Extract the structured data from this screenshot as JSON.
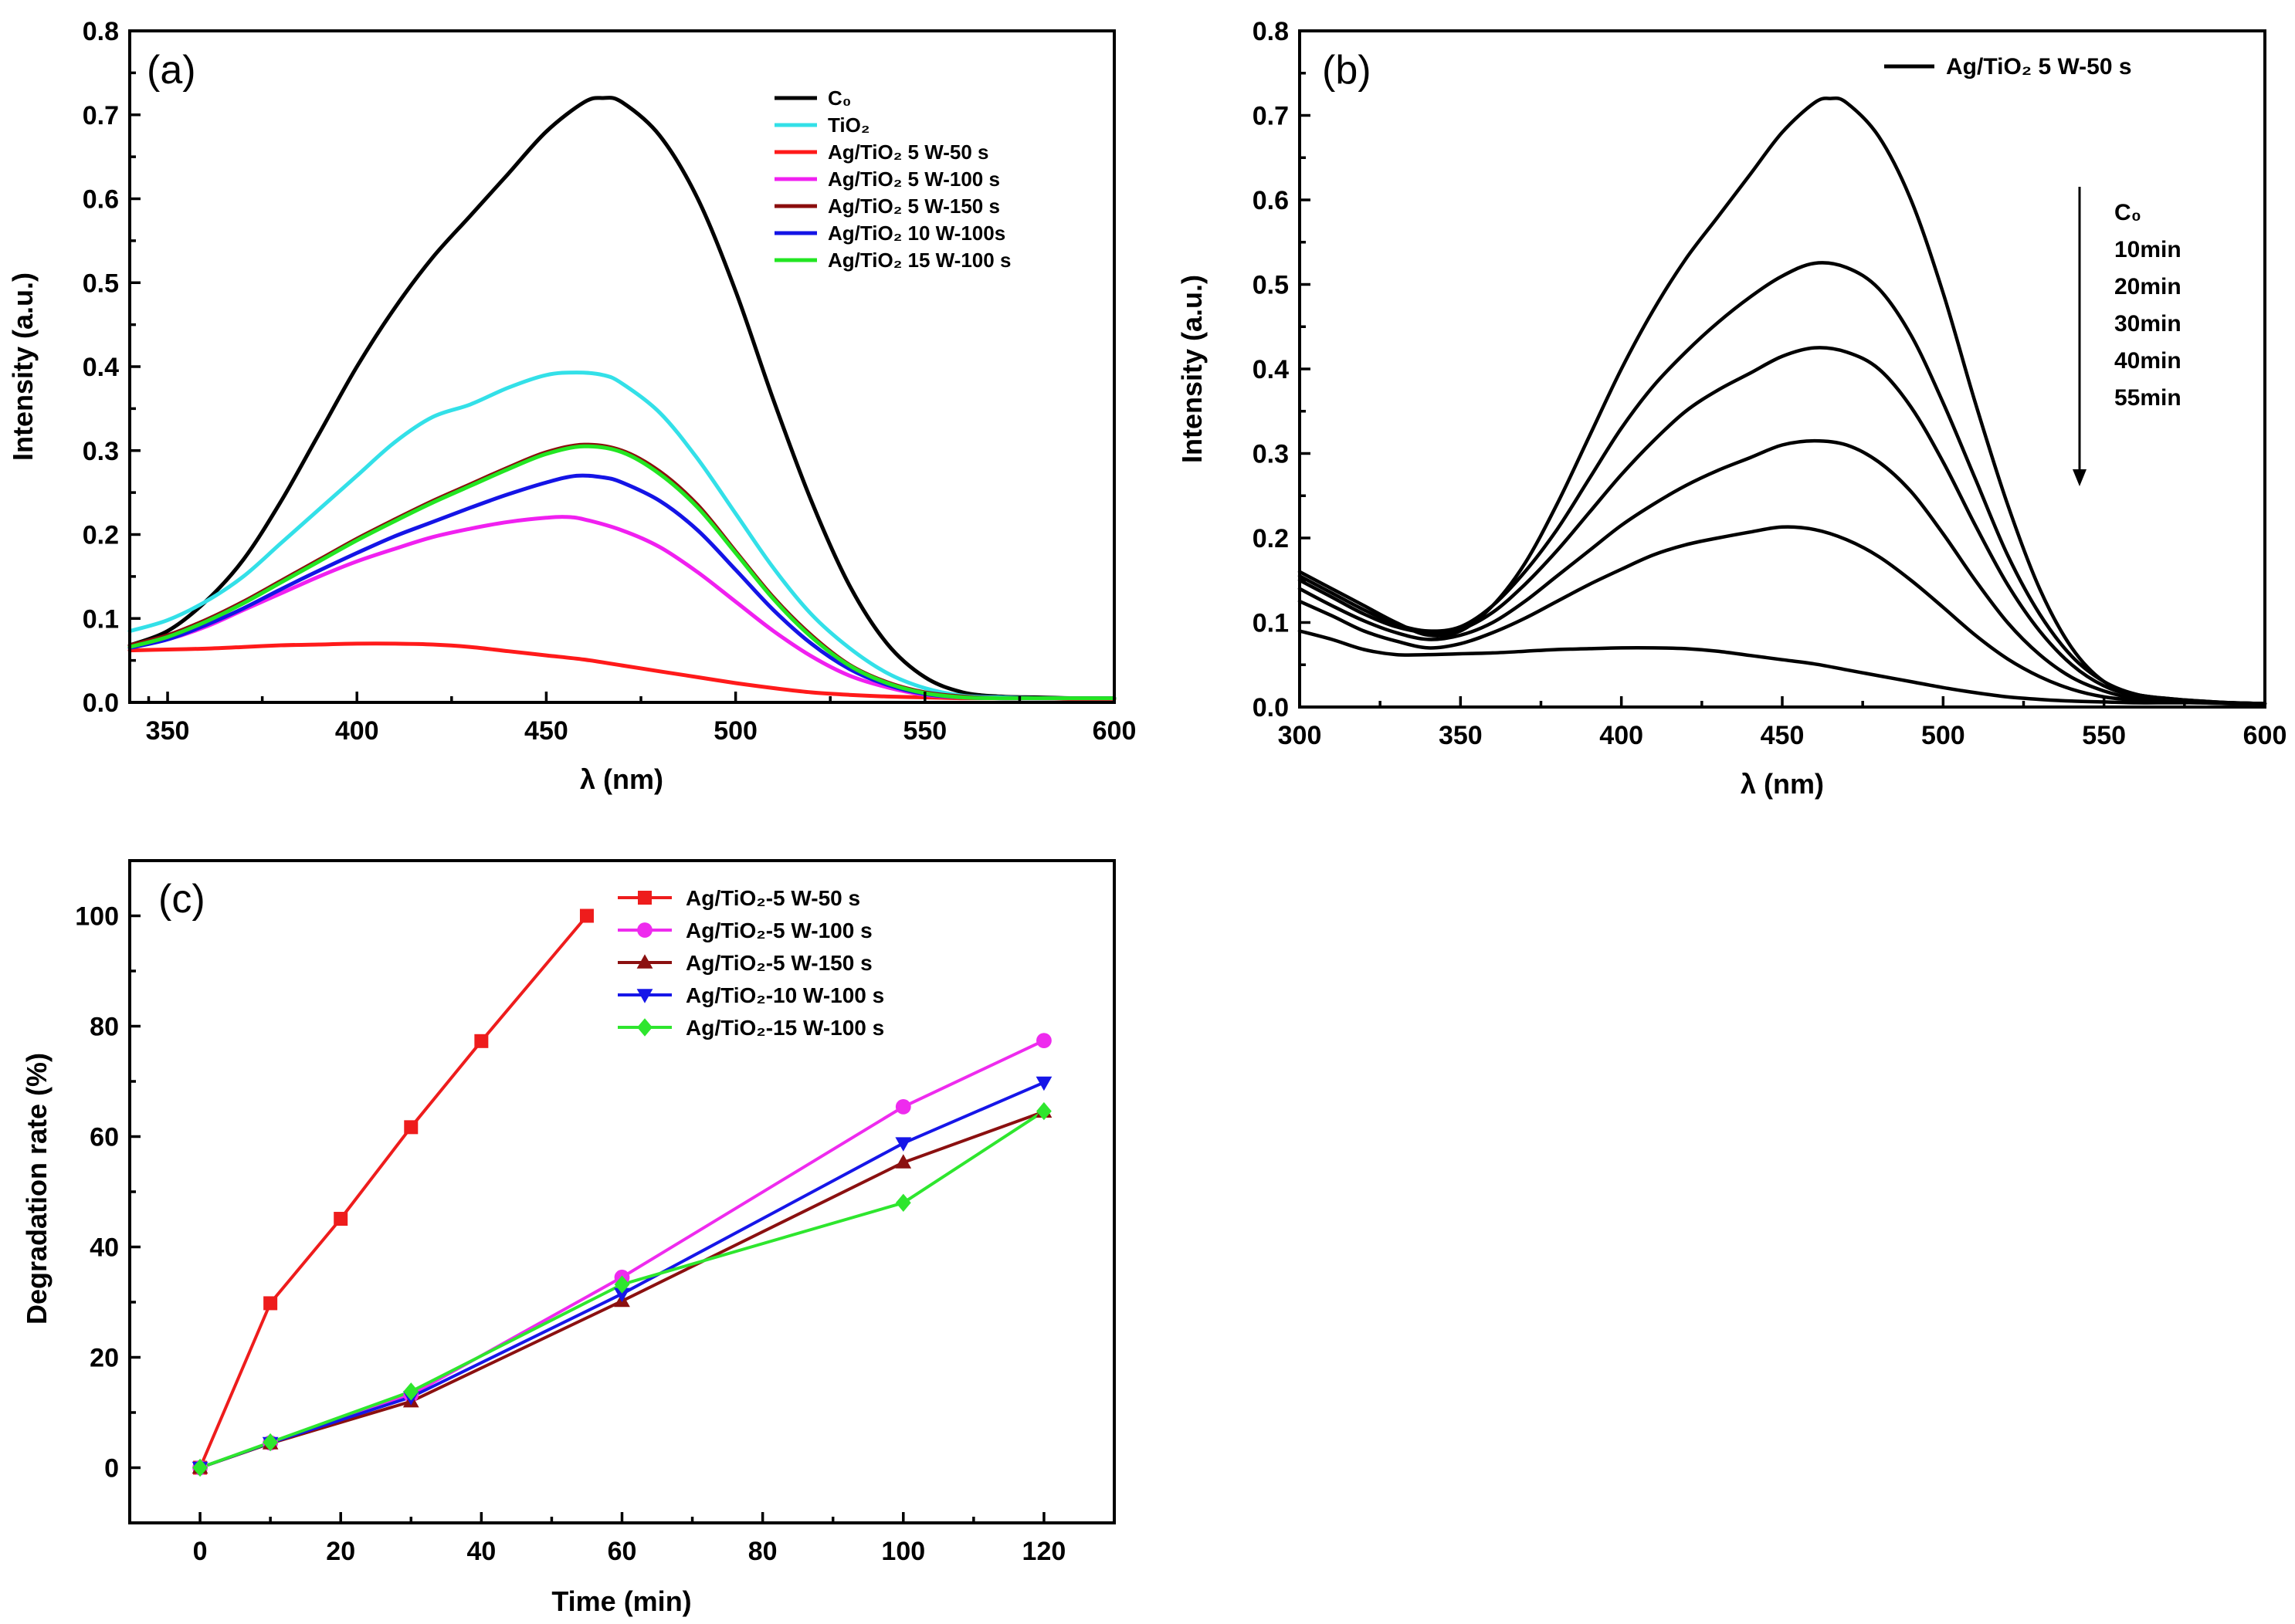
{
  "chart_data": [
    {
      "type": "line",
      "panel_label": "(a)",
      "xlabel": "λ (nm)",
      "ylabel": "Intensity (a.u.)",
      "xlim": [
        340,
        600
      ],
      "ylim": [
        0,
        0.8
      ],
      "xticks": [
        350,
        400,
        450,
        500,
        550,
        600
      ],
      "yticks": [
        0.0,
        0.1,
        0.2,
        0.3,
        0.4,
        0.5,
        0.6,
        0.7,
        0.8
      ],
      "legend_position": "top-right",
      "series": [
        {
          "name": "C₀",
          "color": "#000000",
          "x": [
            340,
            350,
            360,
            370,
            380,
            390,
            400,
            410,
            420,
            430,
            440,
            450,
            460,
            465,
            470,
            480,
            490,
            500,
            510,
            520,
            530,
            540,
            550,
            560,
            570,
            580,
            590,
            600
          ],
          "values": [
            0.068,
            0.085,
            0.12,
            0.17,
            0.24,
            0.32,
            0.4,
            0.47,
            0.53,
            0.58,
            0.63,
            0.68,
            0.715,
            0.72,
            0.715,
            0.675,
            0.6,
            0.49,
            0.36,
            0.24,
            0.14,
            0.07,
            0.03,
            0.012,
            0.007,
            0.006,
            0.005,
            0.005
          ]
        },
        {
          "name": "TiO₂",
          "color": "#33e0e8",
          "x": [
            340,
            350,
            360,
            370,
            380,
            390,
            400,
            410,
            420,
            430,
            440,
            450,
            458,
            465,
            470,
            480,
            490,
            500,
            510,
            520,
            530,
            540,
            550,
            560,
            570,
            580,
            590,
            600
          ],
          "values": [
            0.085,
            0.098,
            0.12,
            0.15,
            0.19,
            0.23,
            0.27,
            0.31,
            0.34,
            0.355,
            0.375,
            0.39,
            0.393,
            0.39,
            0.38,
            0.345,
            0.29,
            0.225,
            0.16,
            0.105,
            0.065,
            0.035,
            0.017,
            0.008,
            0.006,
            0.005,
            0.005,
            0.005
          ]
        },
        {
          "name": "Ag/TiO₂ 5 W-50 s",
          "color": "#ff1a1a",
          "x": [
            340,
            350,
            360,
            370,
            380,
            390,
            400,
            410,
            420,
            430,
            440,
            450,
            460,
            470,
            480,
            490,
            500,
            510,
            520,
            530,
            540,
            550,
            560,
            570,
            580,
            590,
            600
          ],
          "values": [
            0.062,
            0.063,
            0.064,
            0.066,
            0.068,
            0.069,
            0.07,
            0.07,
            0.069,
            0.066,
            0.061,
            0.056,
            0.051,
            0.044,
            0.037,
            0.03,
            0.023,
            0.017,
            0.012,
            0.009,
            0.007,
            0.006,
            0.005,
            0.005,
            0.005,
            0.004,
            0.004
          ]
        },
        {
          "name": "Ag/TiO₂ 5 W-100 s",
          "color": "#f020f0",
          "x": [
            340,
            350,
            360,
            370,
            380,
            390,
            400,
            410,
            420,
            430,
            440,
            450,
            455,
            460,
            470,
            480,
            490,
            500,
            510,
            520,
            530,
            540,
            550,
            560,
            570,
            580,
            590,
            600
          ],
          "values": [
            0.065,
            0.075,
            0.09,
            0.11,
            0.13,
            0.15,
            0.168,
            0.183,
            0.197,
            0.207,
            0.215,
            0.22,
            0.221,
            0.218,
            0.205,
            0.185,
            0.155,
            0.12,
            0.085,
            0.055,
            0.032,
            0.018,
            0.009,
            0.006,
            0.005,
            0.005,
            0.005,
            0.005
          ]
        },
        {
          "name": "Ag/TiO₂ 5 W-150 s",
          "color": "#8b0d0d",
          "x": [
            340,
            350,
            360,
            370,
            380,
            390,
            400,
            410,
            420,
            430,
            440,
            450,
            460,
            470,
            480,
            490,
            500,
            510,
            520,
            530,
            540,
            550,
            560,
            570,
            580,
            590,
            600
          ],
          "values": [
            0.068,
            0.08,
            0.098,
            0.12,
            0.145,
            0.17,
            0.195,
            0.218,
            0.24,
            0.26,
            0.28,
            0.298,
            0.307,
            0.3,
            0.275,
            0.235,
            0.18,
            0.125,
            0.08,
            0.045,
            0.024,
            0.012,
            0.007,
            0.005,
            0.005,
            0.005,
            0.005
          ]
        },
        {
          "name": "Ag/TiO₂ 10 W-100s",
          "color": "#1414e6",
          "x": [
            340,
            350,
            360,
            370,
            380,
            390,
            400,
            410,
            420,
            430,
            440,
            450,
            458,
            465,
            470,
            480,
            490,
            500,
            510,
            520,
            530,
            540,
            550,
            560,
            570,
            580,
            590,
            600
          ],
          "values": [
            0.065,
            0.075,
            0.092,
            0.112,
            0.135,
            0.157,
            0.178,
            0.198,
            0.215,
            0.232,
            0.248,
            0.262,
            0.27,
            0.268,
            0.262,
            0.24,
            0.205,
            0.158,
            0.11,
            0.07,
            0.04,
            0.021,
            0.01,
            0.006,
            0.005,
            0.005,
            0.005,
            0.005
          ]
        },
        {
          "name": "Ag/TiO₂ 15 W-100 s",
          "color": "#22e622",
          "x": [
            340,
            350,
            360,
            370,
            380,
            390,
            400,
            410,
            420,
            430,
            440,
            450,
            460,
            470,
            480,
            490,
            500,
            510,
            520,
            530,
            540,
            550,
            560,
            570,
            580,
            590,
            600
          ],
          "values": [
            0.066,
            0.078,
            0.096,
            0.118,
            0.143,
            0.168,
            0.193,
            0.216,
            0.238,
            0.258,
            0.278,
            0.296,
            0.305,
            0.298,
            0.272,
            0.232,
            0.178,
            0.123,
            0.078,
            0.044,
            0.023,
            0.011,
            0.006,
            0.005,
            0.005,
            0.005,
            0.005
          ]
        }
      ]
    },
    {
      "type": "line",
      "panel_label": "(b)",
      "xlabel": "λ (nm)",
      "ylabel": "Intensity (a.u.)",
      "xlim": [
        300,
        600
      ],
      "ylim": [
        0,
        0.8
      ],
      "xticks": [
        300,
        350,
        400,
        450,
        500,
        550,
        600
      ],
      "yticks": [
        0.0,
        0.1,
        0.2,
        0.3,
        0.4,
        0.5,
        0.6,
        0.7,
        0.8
      ],
      "legend_entries": [
        "Ag/TiO₂ 5 W-50 s"
      ],
      "time_labels": [
        "C₀",
        "10min",
        "20min",
        "30min",
        "40min",
        "55min"
      ],
      "series": [
        {
          "name": "C₀",
          "color": "#000000",
          "x": [
            300,
            310,
            320,
            330,
            340,
            350,
            360,
            370,
            380,
            390,
            400,
            410,
            420,
            430,
            440,
            450,
            460,
            465,
            470,
            480,
            490,
            500,
            510,
            520,
            530,
            540,
            550,
            560,
            570,
            580,
            590,
            600
          ],
          "values": [
            0.16,
            0.14,
            0.12,
            0.1,
            0.085,
            0.09,
            0.12,
            0.17,
            0.24,
            0.32,
            0.4,
            0.47,
            0.53,
            0.58,
            0.63,
            0.68,
            0.715,
            0.72,
            0.715,
            0.675,
            0.6,
            0.49,
            0.36,
            0.24,
            0.14,
            0.07,
            0.03,
            0.015,
            0.01,
            0.007,
            0.005,
            0.004
          ]
        },
        {
          "name": "10min",
          "color": "#000000",
          "x": [
            300,
            310,
            320,
            330,
            340,
            350,
            360,
            370,
            380,
            390,
            400,
            410,
            420,
            430,
            440,
            450,
            460,
            470,
            480,
            490,
            500,
            510,
            520,
            530,
            540,
            550,
            560,
            570,
            580,
            590,
            600
          ],
          "values": [
            0.155,
            0.135,
            0.115,
            0.098,
            0.09,
            0.095,
            0.12,
            0.16,
            0.21,
            0.27,
            0.33,
            0.38,
            0.42,
            0.455,
            0.485,
            0.51,
            0.525,
            0.52,
            0.495,
            0.44,
            0.36,
            0.27,
            0.18,
            0.11,
            0.06,
            0.03,
            0.015,
            0.01,
            0.007,
            0.005,
            0.004
          ]
        },
        {
          "name": "20min",
          "color": "#000000",
          "x": [
            300,
            310,
            320,
            330,
            340,
            350,
            360,
            370,
            380,
            390,
            400,
            410,
            420,
            430,
            440,
            450,
            460,
            470,
            480,
            490,
            500,
            510,
            520,
            530,
            540,
            550,
            560,
            570,
            580,
            590,
            600
          ],
          "values": [
            0.15,
            0.13,
            0.11,
            0.095,
            0.088,
            0.092,
            0.112,
            0.145,
            0.185,
            0.23,
            0.275,
            0.315,
            0.35,
            0.375,
            0.395,
            0.415,
            0.425,
            0.42,
            0.4,
            0.355,
            0.29,
            0.215,
            0.145,
            0.09,
            0.05,
            0.025,
            0.013,
            0.009,
            0.006,
            0.005,
            0.004
          ]
        },
        {
          "name": "30min",
          "color": "#000000",
          "x": [
            300,
            310,
            320,
            330,
            340,
            350,
            360,
            370,
            380,
            390,
            400,
            410,
            420,
            430,
            440,
            450,
            460,
            470,
            480,
            490,
            500,
            510,
            520,
            530,
            540,
            550,
            560,
            570,
            580,
            590,
            600
          ],
          "values": [
            0.14,
            0.12,
            0.102,
            0.088,
            0.08,
            0.085,
            0.1,
            0.125,
            0.155,
            0.185,
            0.215,
            0.24,
            0.262,
            0.28,
            0.295,
            0.31,
            0.315,
            0.31,
            0.29,
            0.255,
            0.205,
            0.15,
            0.1,
            0.062,
            0.035,
            0.019,
            0.01,
            0.007,
            0.006,
            0.005,
            0.004
          ]
        },
        {
          "name": "40min",
          "color": "#000000",
          "x": [
            300,
            310,
            320,
            330,
            340,
            350,
            360,
            370,
            380,
            390,
            400,
            410,
            420,
            430,
            440,
            450,
            460,
            470,
            480,
            490,
            500,
            510,
            520,
            530,
            540,
            550,
            560,
            570,
            580,
            590,
            600
          ],
          "values": [
            0.125,
            0.108,
            0.09,
            0.078,
            0.07,
            0.075,
            0.088,
            0.105,
            0.125,
            0.145,
            0.163,
            0.18,
            0.192,
            0.2,
            0.207,
            0.213,
            0.21,
            0.198,
            0.178,
            0.15,
            0.118,
            0.085,
            0.057,
            0.036,
            0.021,
            0.012,
            0.008,
            0.006,
            0.005,
            0.004,
            0.004
          ]
        },
        {
          "name": "55min",
          "color": "#000000",
          "x": [
            300,
            310,
            320,
            330,
            340,
            350,
            360,
            370,
            380,
            390,
            400,
            410,
            420,
            430,
            440,
            450,
            460,
            470,
            480,
            490,
            500,
            510,
            520,
            530,
            540,
            550,
            560,
            570,
            580,
            590,
            600
          ],
          "values": [
            0.09,
            0.08,
            0.068,
            0.062,
            0.062,
            0.063,
            0.064,
            0.066,
            0.068,
            0.069,
            0.07,
            0.07,
            0.069,
            0.066,
            0.061,
            0.056,
            0.051,
            0.044,
            0.037,
            0.03,
            0.023,
            0.017,
            0.012,
            0.009,
            0.007,
            0.006,
            0.005,
            0.005,
            0.005,
            0.004,
            0.004
          ]
        }
      ]
    },
    {
      "type": "line",
      "panel_label": "(c)",
      "xlabel": "Time (min)",
      "ylabel": "Degradation rate (%)",
      "xlim": [
        -10,
        130
      ],
      "ylim": [
        -10,
        110
      ],
      "xticks": [
        0,
        20,
        40,
        60,
        80,
        100,
        120
      ],
      "yticks": [
        0,
        20,
        40,
        60,
        80,
        100
      ],
      "legend_position": "top-center",
      "series": [
        {
          "name": "Ag/TiO₂-5 W-50 s",
          "color": "#ee1c1c",
          "marker": "square",
          "x": [
            0,
            10,
            20,
            30,
            40,
            55
          ],
          "values": [
            0,
            29.8,
            45.1,
            61.7,
            77.3,
            100
          ]
        },
        {
          "name": "Ag/TiO₂-5 W-100 s",
          "color": "#ee2bee",
          "marker": "circle",
          "x": [
            0,
            10,
            30,
            60,
            100,
            120
          ],
          "values": [
            0,
            4.5,
            13.2,
            34.5,
            65.4,
            77.4
          ]
        },
        {
          "name": "Ag/TiO₂-5 W-150 s",
          "color": "#8b1010",
          "marker": "triangle-up",
          "x": [
            0,
            10,
            30,
            60,
            100,
            120
          ],
          "values": [
            0,
            4.4,
            12.0,
            30.2,
            55.3,
            64.5
          ]
        },
        {
          "name": "Ag/TiO₂-10 W-100 s",
          "color": "#1616e8",
          "marker": "triangle-down",
          "x": [
            0,
            10,
            30,
            60,
            100,
            120
          ],
          "values": [
            0,
            4.5,
            12.8,
            31.5,
            58.8,
            69.8
          ]
        },
        {
          "name": "Ag/TiO₂-15 W-100 s",
          "color": "#2ee62e",
          "marker": "diamond",
          "x": [
            0,
            10,
            30,
            60,
            100,
            120
          ],
          "values": [
            0,
            4.6,
            13.8,
            33.2,
            48.0,
            64.6
          ]
        }
      ]
    }
  ]
}
